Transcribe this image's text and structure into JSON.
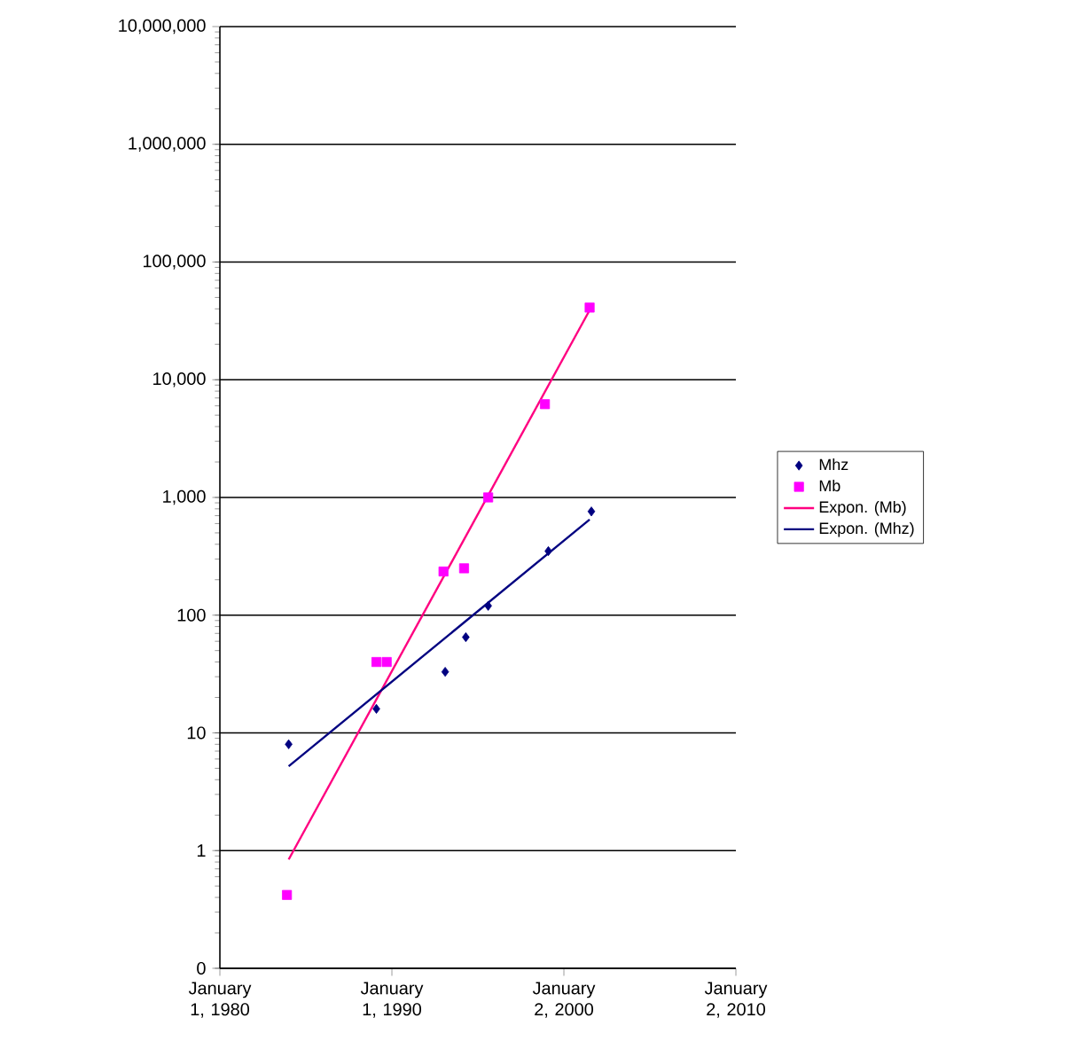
{
  "chart_data": {
    "type": "scatter",
    "log": "y",
    "grid": "y",
    "legend": "right",
    "xlim": [
      "1980-01-01",
      "2010-01-02"
    ],
    "xticks": [
      {
        "value": "1980-01-01",
        "label": "January 1, 1980"
      },
      {
        "value": "1990-01-01",
        "label": "January 1, 1990"
      },
      {
        "value": "2000-01-02",
        "label": "January 2, 2000"
      },
      {
        "value": "2010-01-02",
        "label": "January 2, 2010"
      }
    ],
    "ylim": [
      0.1,
      10000000
    ],
    "yticks": [
      {
        "value": 0.1,
        "label": "0"
      },
      1,
      10,
      100,
      {
        "value": 1000,
        "label": "1,000"
      },
      {
        "value": 10000,
        "label": "10,000"
      },
      {
        "value": 100000,
        "label": "100,000"
      },
      {
        "value": 1000000,
        "label": "1,000,000"
      },
      {
        "value": 10000000,
        "label": "10,000,000"
      }
    ],
    "series": [
      {
        "name": "Mhz",
        "marker": "diamond",
        "color": "#000080",
        "x": [
          "1984-01-01",
          "1989-02-06",
          "1993-02-06",
          "1994-04-20",
          "1995-08-08",
          "1999-02-06",
          "2001-08-08"
        ],
        "values": [
          8,
          16,
          33,
          65,
          120,
          350,
          760
        ]
      },
      {
        "name": "Mb",
        "marker": "square",
        "color": "#ff00ff",
        "x": [
          "1983-11-25",
          "1989-02-06",
          "1989-09-13",
          "1993-01-01",
          "1994-03-14",
          "1995-08-08",
          "1998-11-25",
          "2001-07-02"
        ],
        "values": [
          0.42,
          40,
          40,
          235,
          250,
          1000,
          6200,
          41000
        ]
      },
      {
        "name": "Expon. (Mb)",
        "type": "line",
        "marker": "none",
        "color": "#ff0080",
        "x": [
          "1984-01-01",
          "2001-07-02"
        ],
        "values": [
          0.84,
          39000
        ]
      },
      {
        "name": "Expon. (Mhz)",
        "type": "line",
        "marker": "none",
        "color": "#000080",
        "x": [
          "1984-01-01",
          "2001-07-02"
        ],
        "values": [
          5.2,
          650
        ]
      }
    ]
  }
}
